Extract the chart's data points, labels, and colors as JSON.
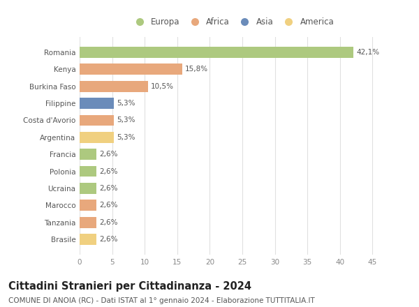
{
  "categories": [
    "Brasile",
    "Tanzania",
    "Marocco",
    "Ucraina",
    "Polonia",
    "Francia",
    "Argentina",
    "Costa d'Avorio",
    "Filippine",
    "Burkina Faso",
    "Kenya",
    "Romania"
  ],
  "values": [
    2.6,
    2.6,
    2.6,
    2.6,
    2.6,
    2.6,
    5.3,
    5.3,
    5.3,
    10.5,
    15.8,
    42.1
  ],
  "continents": [
    "America",
    "Africa",
    "Africa",
    "Europa",
    "Europa",
    "Europa",
    "America",
    "Africa",
    "Asia",
    "Africa",
    "Africa",
    "Europa"
  ],
  "colors": {
    "Europa": "#adc97f",
    "Africa": "#e8a87c",
    "Asia": "#6b8cba",
    "America": "#f0d080"
  },
  "labels": [
    "2,6%",
    "2,6%",
    "2,6%",
    "2,6%",
    "2,6%",
    "2,6%",
    "5,3%",
    "5,3%",
    "5,3%",
    "10,5%",
    "15,8%",
    "42,1%"
  ],
  "xlim": [
    0,
    47
  ],
  "xticks": [
    0,
    5,
    10,
    15,
    20,
    25,
    30,
    35,
    40,
    45
  ],
  "title": "Cittadini Stranieri per Cittadinanza - 2024",
  "subtitle": "COMUNE DI ANOIA (RC) - Dati ISTAT al 1° gennaio 2024 - Elaborazione TUTTITALIA.IT",
  "legend_order": [
    "Europa",
    "Africa",
    "Asia",
    "America"
  ],
  "bg_color": "#ffffff",
  "grid_color": "#e0e0e0",
  "bar_height": 0.65,
  "title_fontsize": 10.5,
  "subtitle_fontsize": 7.5,
  "label_fontsize": 7.5,
  "tick_fontsize": 7.5,
  "legend_fontsize": 8.5
}
